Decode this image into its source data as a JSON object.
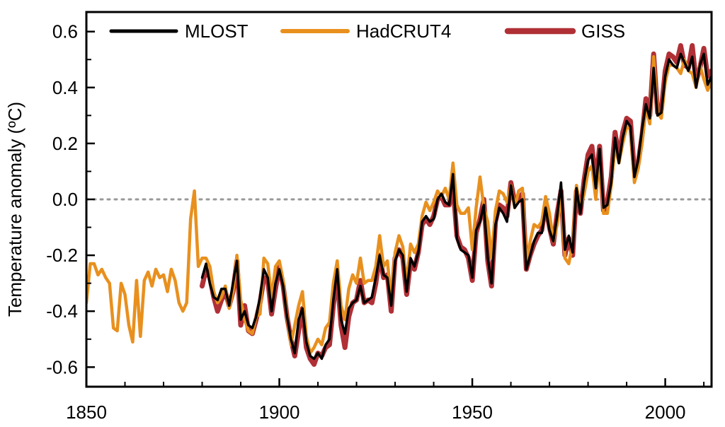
{
  "chart_data": {
    "type": "line",
    "xlabel": "",
    "ylabel": "Temperature anomaly (ºC)",
    "xlim": [
      1850,
      2012
    ],
    "ylim": [
      -0.67,
      0.67
    ],
    "x_ticks": [
      1850,
      1900,
      1950,
      2000
    ],
    "y_ticks": [
      -0.6,
      -0.4,
      -0.2,
      0.0,
      0.2,
      0.4,
      0.6
    ],
    "x_tick_labels": [
      "1850",
      "1900",
      "1950",
      "2000"
    ],
    "y_tick_labels": [
      "-0.6",
      "-0.4",
      "-0.2",
      "0.0",
      "0.2",
      "0.4",
      "0.6"
    ],
    "reference_line": {
      "y": 0.0,
      "style": "dotted",
      "color": "#999999"
    },
    "grid": false,
    "legend_position": "top",
    "series": [
      {
        "name": "MLOST",
        "color": "#000000",
        "x_start": 1880,
        "values": [
          -0.28,
          -0.23,
          -0.3,
          -0.35,
          -0.36,
          -0.32,
          -0.32,
          -0.38,
          -0.3,
          -0.22,
          -0.43,
          -0.4,
          -0.45,
          -0.46,
          -0.42,
          -0.35,
          -0.25,
          -0.28,
          -0.4,
          -0.3,
          -0.25,
          -0.31,
          -0.42,
          -0.5,
          -0.55,
          -0.43,
          -0.39,
          -0.51,
          -0.56,
          -0.57,
          -0.55,
          -0.57,
          -0.52,
          -0.5,
          -0.36,
          -0.25,
          -0.43,
          -0.48,
          -0.39,
          -0.37,
          -0.36,
          -0.31,
          -0.37,
          -0.36,
          -0.35,
          -0.28,
          -0.2,
          -0.27,
          -0.28,
          -0.38,
          -0.22,
          -0.18,
          -0.2,
          -0.33,
          -0.21,
          -0.24,
          -0.19,
          -0.08,
          -0.06,
          -0.08,
          -0.07,
          0.0,
          0.02,
          -0.01,
          -0.02,
          0.09,
          -0.14,
          -0.18,
          -0.19,
          -0.2,
          -0.28,
          -0.11,
          -0.08,
          -0.02,
          -0.21,
          -0.3,
          -0.09,
          -0.03,
          -0.05,
          -0.08,
          0.05,
          -0.03,
          -0.01,
          0.0,
          -0.25,
          -0.2,
          -0.15,
          -0.12,
          -0.12,
          -0.03,
          -0.11,
          -0.15,
          -0.06,
          0.06,
          -0.18,
          -0.13,
          -0.19,
          0.04,
          -0.05,
          0.06,
          0.14,
          0.16,
          0.04,
          0.18,
          -0.03,
          -0.02,
          0.06,
          0.22,
          0.13,
          0.22,
          0.28,
          0.26,
          0.08,
          0.14,
          0.25,
          0.34,
          0.29,
          0.47,
          0.3,
          0.31,
          0.44,
          0.5,
          0.48,
          0.47,
          0.52,
          0.49,
          0.46,
          0.51,
          0.4,
          0.48,
          0.52,
          0.41,
          0.44
        ]
      },
      {
        "name": "HadCRUT4",
        "color": "#e8901e",
        "x_start": 1850,
        "values": [
          -0.37,
          -0.23,
          -0.23,
          -0.27,
          -0.25,
          -0.28,
          -0.3,
          -0.46,
          -0.47,
          -0.3,
          -0.34,
          -0.45,
          -0.51,
          -0.29,
          -0.49,
          -0.29,
          -0.26,
          -0.31,
          -0.25,
          -0.28,
          -0.27,
          -0.33,
          -0.25,
          -0.29,
          -0.37,
          -0.4,
          -0.37,
          -0.07,
          0.03,
          -0.24,
          -0.21,
          -0.21,
          -0.24,
          -0.33,
          -0.37,
          -0.35,
          -0.31,
          -0.39,
          -0.33,
          -0.2,
          -0.36,
          -0.43,
          -0.47,
          -0.48,
          -0.42,
          -0.41,
          -0.21,
          -0.23,
          -0.35,
          -0.24,
          -0.22,
          -0.29,
          -0.42,
          -0.52,
          -0.45,
          -0.38,
          -0.33,
          -0.49,
          -0.55,
          -0.53,
          -0.5,
          -0.52,
          -0.46,
          -0.44,
          -0.3,
          -0.22,
          -0.38,
          -0.43,
          -0.32,
          -0.27,
          -0.3,
          -0.21,
          -0.3,
          -0.29,
          -0.29,
          -0.24,
          -0.13,
          -0.24,
          -0.22,
          -0.36,
          -0.19,
          -0.13,
          -0.17,
          -0.3,
          -0.16,
          -0.19,
          -0.16,
          -0.06,
          -0.01,
          -0.04,
          -0.01,
          0.03,
          0.01,
          0.04,
          0.0,
          0.13,
          -0.02,
          -0.05,
          -0.05,
          -0.03,
          -0.18,
          -0.03,
          0.08,
          -0.03,
          -0.08,
          -0.21,
          -0.04,
          0.03,
          0.02,
          -0.01,
          0.05,
          -0.03,
          0.03,
          0.04,
          -0.23,
          -0.15,
          -0.09,
          -0.1,
          -0.08,
          0.01,
          -0.05,
          -0.15,
          -0.09,
          0.02,
          -0.21,
          -0.23,
          -0.16,
          0.05,
          -0.03,
          0.02,
          0.1,
          0.12,
          0.0,
          0.16,
          -0.05,
          -0.05,
          0.05,
          0.19,
          0.13,
          0.2,
          0.26,
          0.25,
          0.06,
          0.11,
          0.2,
          0.33,
          0.27,
          0.51,
          0.31,
          0.29,
          0.42,
          0.48,
          0.48,
          0.47,
          0.45,
          0.5,
          0.46,
          0.45,
          0.4,
          0.48,
          0.43,
          0.39,
          0.42
        ]
      },
      {
        "name": "GISS",
        "color": "#b03036",
        "x_start": 1880,
        "values": [
          -0.31,
          -0.25,
          -0.28,
          -0.35,
          -0.4,
          -0.36,
          -0.33,
          -0.38,
          -0.33,
          -0.22,
          -0.45,
          -0.38,
          -0.47,
          -0.48,
          -0.43,
          -0.37,
          -0.28,
          -0.29,
          -0.41,
          -0.32,
          -0.24,
          -0.31,
          -0.42,
          -0.5,
          -0.56,
          -0.47,
          -0.39,
          -0.53,
          -0.57,
          -0.59,
          -0.55,
          -0.56,
          -0.53,
          -0.52,
          -0.38,
          -0.27,
          -0.45,
          -0.53,
          -0.42,
          -0.37,
          -0.36,
          -0.29,
          -0.37,
          -0.36,
          -0.37,
          -0.3,
          -0.2,
          -0.28,
          -0.27,
          -0.4,
          -0.21,
          -0.18,
          -0.21,
          -0.34,
          -0.22,
          -0.25,
          -0.19,
          -0.09,
          -0.07,
          -0.09,
          -0.06,
          0.0,
          0.01,
          -0.02,
          -0.02,
          0.05,
          -0.13,
          -0.17,
          -0.18,
          -0.21,
          -0.29,
          -0.12,
          -0.07,
          0.0,
          -0.22,
          -0.31,
          -0.08,
          -0.02,
          -0.03,
          -0.06,
          0.06,
          -0.01,
          0.0,
          0.02,
          -0.25,
          -0.2,
          -0.16,
          -0.13,
          -0.11,
          -0.02,
          -0.1,
          -0.16,
          -0.05,
          0.03,
          -0.2,
          -0.14,
          -0.2,
          0.03,
          -0.05,
          0.07,
          0.16,
          0.19,
          0.06,
          0.19,
          -0.04,
          -0.01,
          0.08,
          0.24,
          0.15,
          0.24,
          0.29,
          0.28,
          0.1,
          0.13,
          0.23,
          0.36,
          0.3,
          0.52,
          0.31,
          0.32,
          0.46,
          0.52,
          0.51,
          0.49,
          0.55,
          0.48,
          0.47,
          0.55,
          0.42,
          0.47,
          0.54,
          0.44,
          0.46
        ]
      }
    ]
  }
}
